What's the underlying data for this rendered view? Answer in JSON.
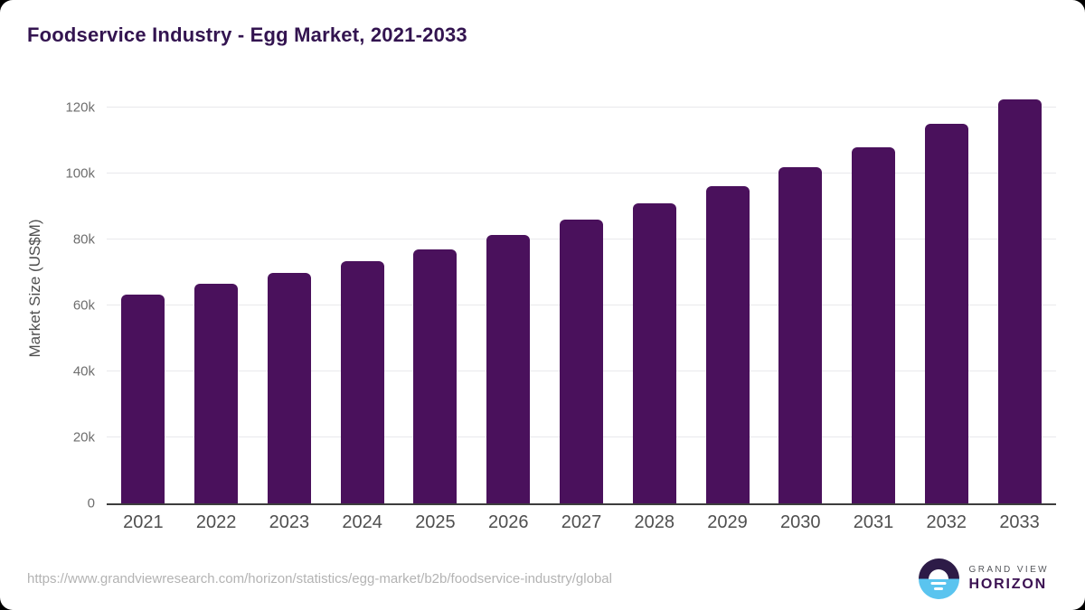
{
  "chart_data": {
    "type": "bar",
    "title": "Foodservice Industry - Egg Market, 2021-2033",
    "categories": [
      "2021",
      "2022",
      "2023",
      "2024",
      "2025",
      "2026",
      "2027",
      "2028",
      "2029",
      "2030",
      "2031",
      "2032",
      "2033"
    ],
    "values": [
      63300,
      66500,
      69900,
      73400,
      77000,
      81300,
      85900,
      90800,
      96000,
      102000,
      107900,
      115000,
      122400
    ],
    "xlabel": "",
    "ylabel": "Market Size (US$M)",
    "ylim": [
      0,
      130900
    ],
    "yticks": [
      {
        "value": 0,
        "label": "0"
      },
      {
        "value": 20000,
        "label": "20k"
      },
      {
        "value": 40000,
        "label": "40k"
      },
      {
        "value": 60000,
        "label": "60k"
      },
      {
        "value": 80000,
        "label": "80k"
      },
      {
        "value": 100000,
        "label": "100k"
      },
      {
        "value": 120000,
        "label": "120k"
      }
    ],
    "grid": "horizontal",
    "legend": "none",
    "bar_color": "#4a115c"
  },
  "footer": {
    "source_url": "https://www.grandviewresearch.com/horizon/statistics/egg-market/b2b/foodservice-industry/global",
    "logo": {
      "brand_line1": "GRAND VIEW",
      "brand_line2": "HORIZON"
    }
  },
  "colors": {
    "title_text": "#331450",
    "bar": "#4a115c",
    "axis_line": "#3d3d3d",
    "gridline": "#e9e9ec",
    "y_tick_label": "#6e6e6e",
    "x_tick_label": "#4f4f4f",
    "source_text": "#b3b3b3",
    "logo_dark": "#2d1b47",
    "logo_blue": "#5ac4ef"
  }
}
